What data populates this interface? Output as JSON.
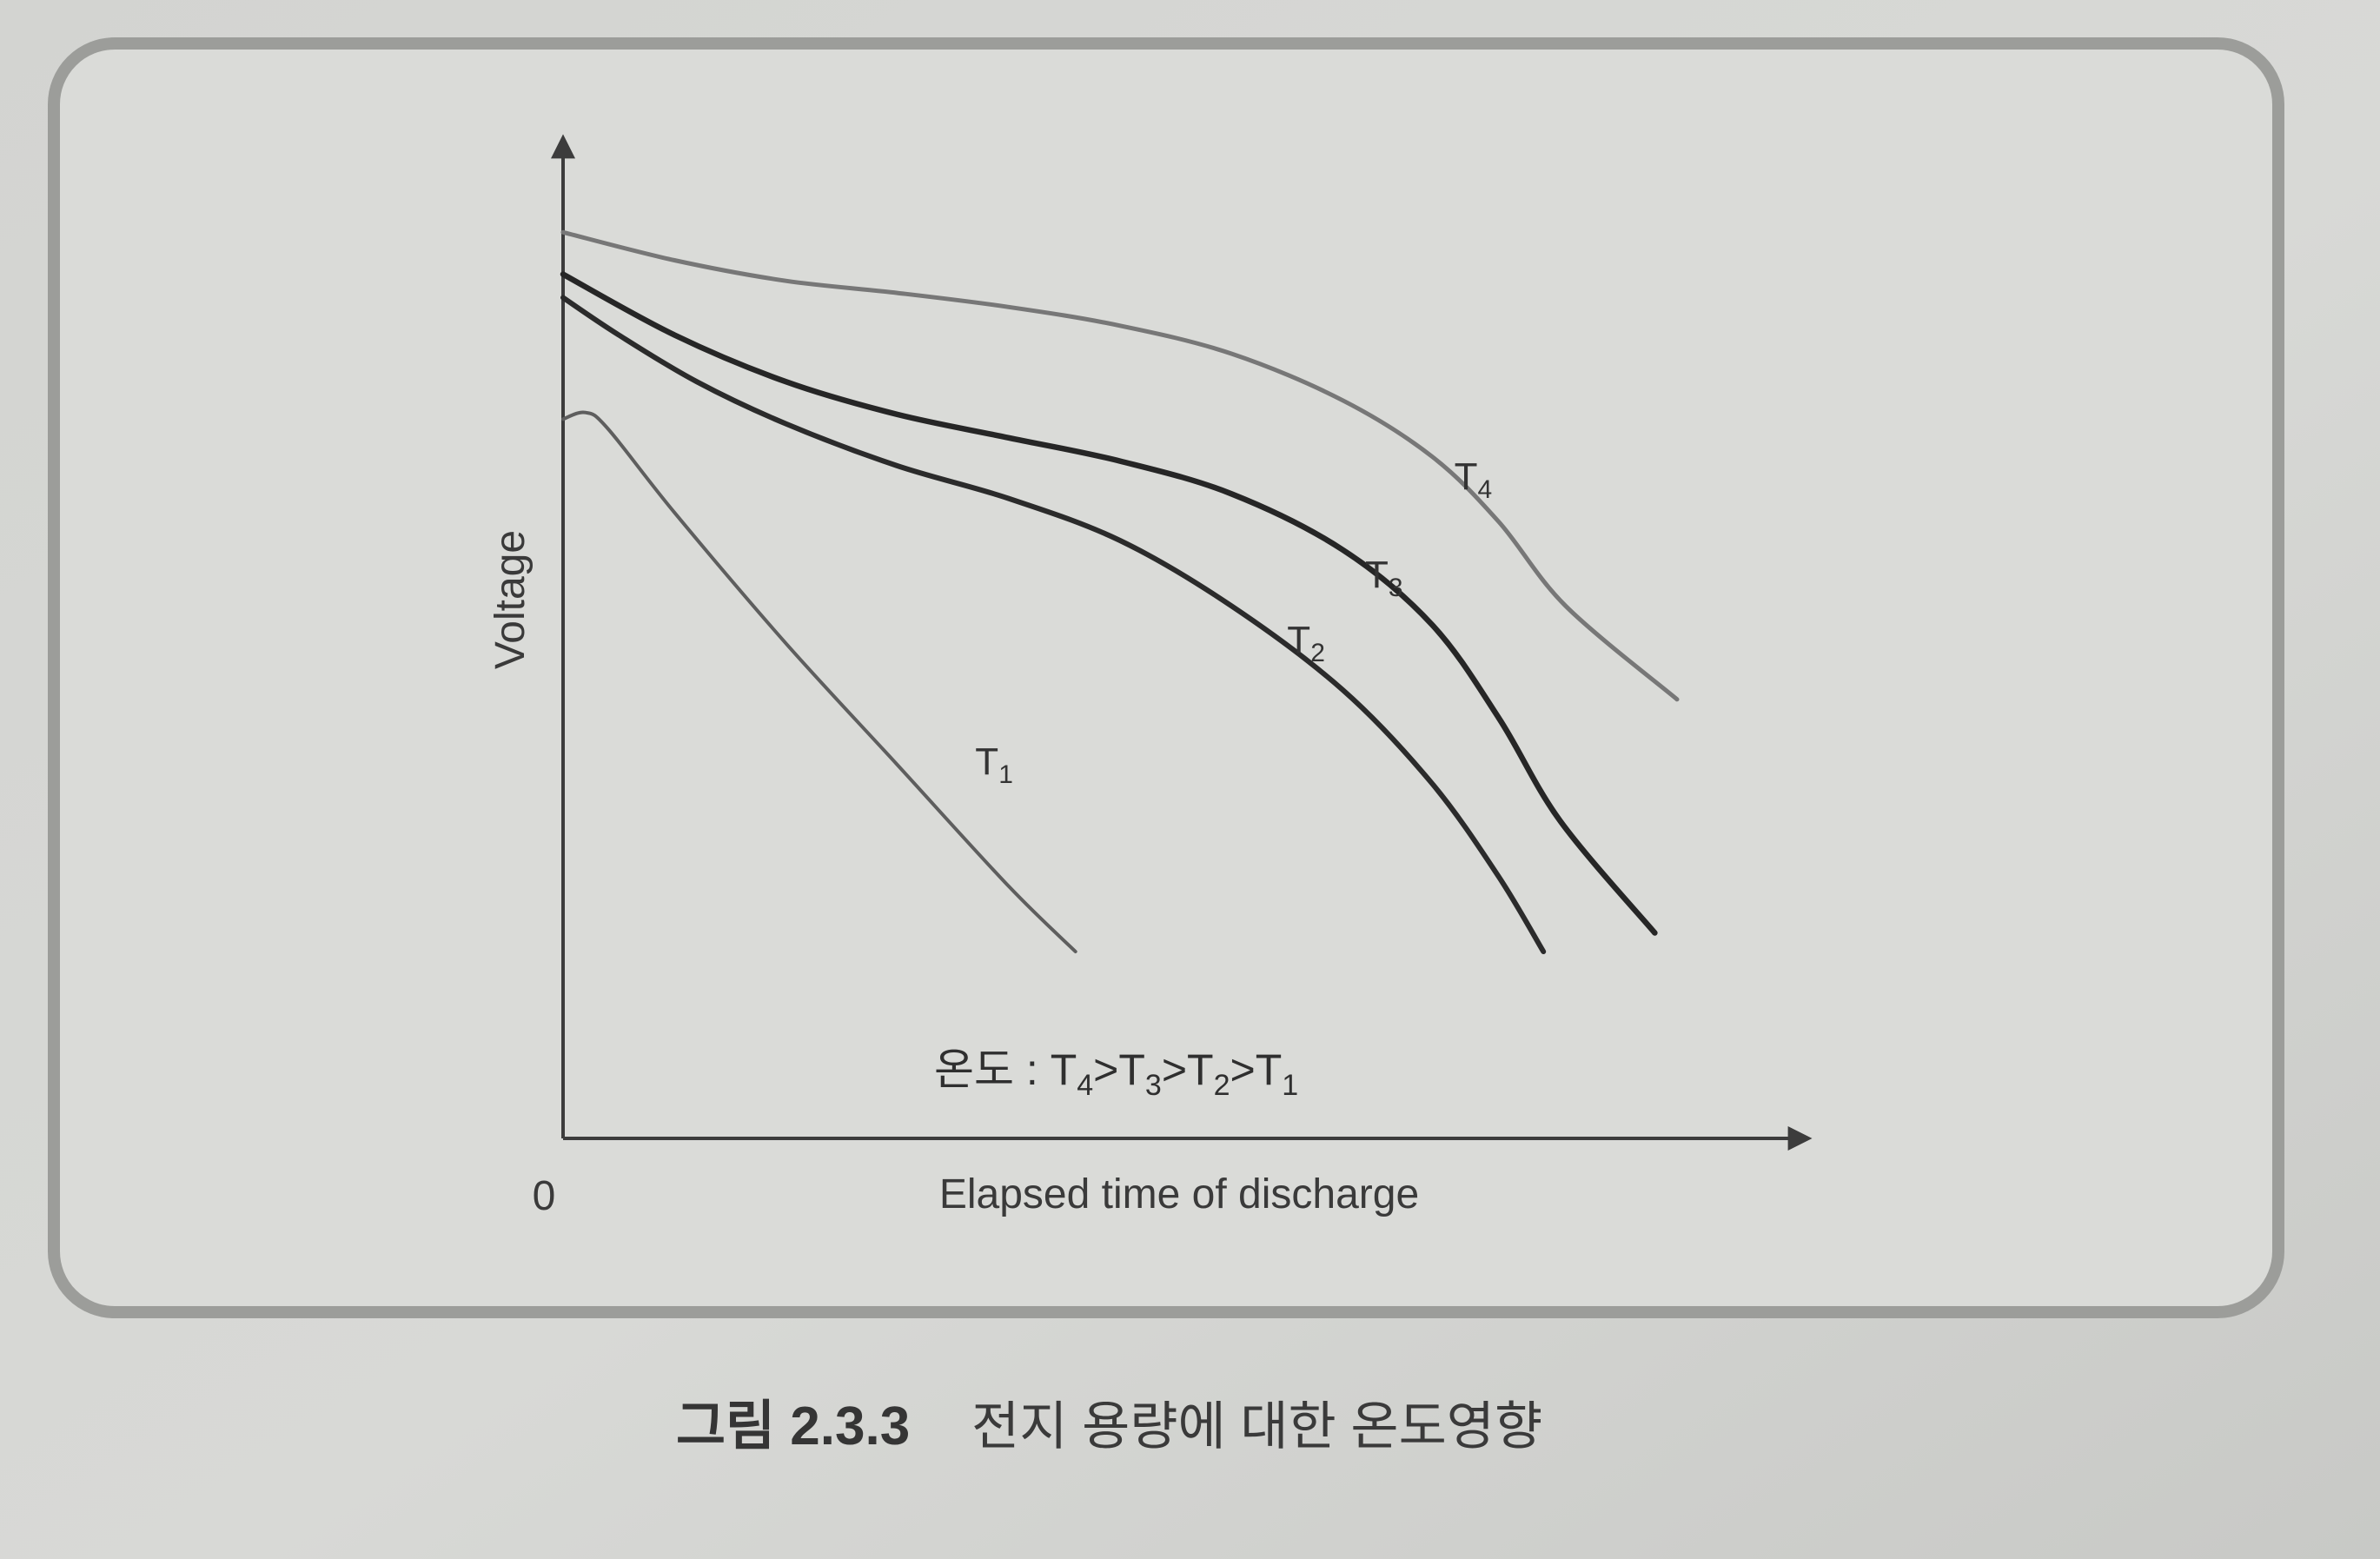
{
  "chart_data": {
    "type": "line",
    "xlabel": "Elapsed time of discharge",
    "ylabel": "Voltage",
    "origin_label": "0",
    "xlim": [
      0,
      100
    ],
    "ylim": [
      0,
      100
    ],
    "grid": false,
    "legend_note": {
      "prefix": "온도 : ",
      "items": [
        {
          "base": "T",
          "sub": "4"
        },
        {
          "sep": ">"
        },
        {
          "base": "T",
          "sub": "3"
        },
        {
          "sep": ">"
        },
        {
          "base": "T",
          "sub": "2"
        },
        {
          "sep": ">"
        },
        {
          "base": "T",
          "sub": "1"
        }
      ]
    },
    "series": [
      {
        "name": "T1",
        "label_base": "T",
        "label_sub": "1",
        "color": "#5e5e5e",
        "points": [
          [
            0,
            77
          ],
          [
            2,
            77.7
          ],
          [
            4,
            76
          ],
          [
            10,
            67
          ],
          [
            20,
            53
          ],
          [
            30,
            40
          ],
          [
            40,
            27
          ],
          [
            46,
            20
          ]
        ],
        "label_at": [
          37,
          39
        ]
      },
      {
        "name": "T2",
        "label_base": "T",
        "label_sub": "2",
        "color": "#2b2b2b",
        "points": [
          [
            0,
            90
          ],
          [
            5,
            86
          ],
          [
            12,
            81
          ],
          [
            20,
            76.5
          ],
          [
            30,
            72
          ],
          [
            40,
            68.5
          ],
          [
            50,
            64
          ],
          [
            60,
            57
          ],
          [
            70,
            48
          ],
          [
            78,
            38
          ],
          [
            84,
            28
          ],
          [
            88,
            20
          ]
        ],
        "label_at": [
          65,
          52
        ]
      },
      {
        "name": "T3",
        "label_base": "T",
        "label_sub": "3",
        "color": "#262626",
        "points": [
          [
            0,
            92.5
          ],
          [
            10,
            86
          ],
          [
            20,
            81
          ],
          [
            30,
            77.5
          ],
          [
            40,
            75
          ],
          [
            50,
            72.5
          ],
          [
            60,
            69
          ],
          [
            70,
            63
          ],
          [
            78,
            55
          ],
          [
            84,
            45
          ],
          [
            89.5,
            34
          ],
          [
            98,
            22
          ]
        ],
        "label_at": [
          72,
          59
        ]
      },
      {
        "name": "T4",
        "label_base": "T",
        "label_sub": "4",
        "color": "#777777",
        "points": [
          [
            0,
            97
          ],
          [
            10,
            94
          ],
          [
            20,
            91.8
          ],
          [
            30,
            90.5
          ],
          [
            40,
            89
          ],
          [
            50,
            87
          ],
          [
            60,
            84
          ],
          [
            70,
            79
          ],
          [
            78,
            73
          ],
          [
            84,
            66
          ],
          [
            90,
            57
          ],
          [
            100,
            47
          ]
        ],
        "label_at": [
          80,
          69.5
        ]
      }
    ]
  },
  "caption": {
    "number": "그림 2.3.3",
    "text": "전지 용량에 대한 온도영향"
  }
}
